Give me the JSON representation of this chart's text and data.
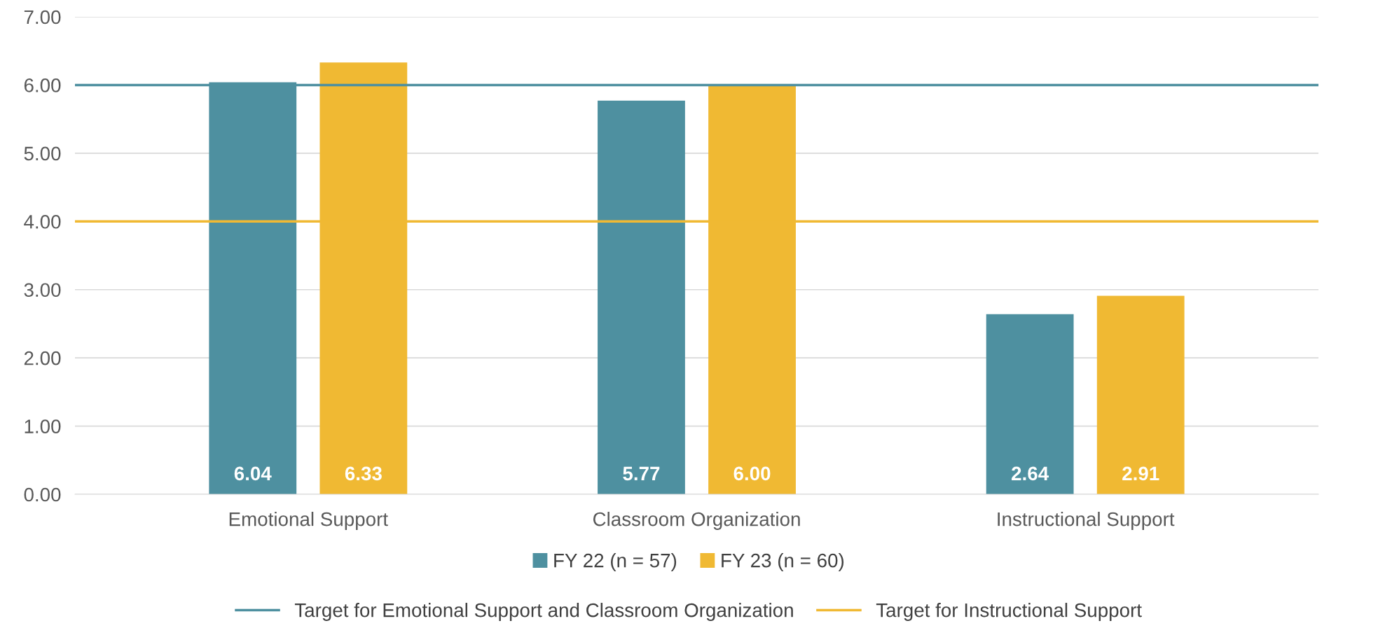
{
  "chart_data": {
    "type": "bar",
    "categories": [
      "Emotional Support",
      "Classroom Organization",
      "Instructional Support"
    ],
    "series": [
      {
        "name": "FY 22 (n = 57)",
        "color": "#4e90a0",
        "values": [
          6.04,
          5.77,
          2.64
        ],
        "value_labels": [
          "6.04",
          "5.77",
          "2.64"
        ]
      },
      {
        "name": "FY 23 (n = 60)",
        "color": "#f0b933",
        "values": [
          6.33,
          6.0,
          2.91
        ],
        "value_labels": [
          "6.33",
          "6.00",
          "2.91"
        ]
      }
    ],
    "ylim": [
      0,
      7
    ],
    "yticks": [
      {
        "value": 0,
        "label": "0.00"
      },
      {
        "value": 1,
        "label": "1.00"
      },
      {
        "value": 2,
        "label": "2.00"
      },
      {
        "value": 3,
        "label": "3.00"
      },
      {
        "value": 4,
        "label": "4.00"
      },
      {
        "value": 5,
        "label": "5.00"
      },
      {
        "value": 6,
        "label": "6.00"
      },
      {
        "value": 7,
        "label": "7.00"
      }
    ],
    "ref_lines": [
      {
        "axis": "y",
        "value": 6,
        "label": "Target for Emotional Support and Classroom Organization",
        "color": "#4e90a0",
        "line_style": "solid"
      },
      {
        "axis": "y",
        "value": 4,
        "label": "Target for Instructional Support",
        "color": "#f0b933",
        "line_style": "solid"
      }
    ],
    "grid": "y",
    "legend": "bottom"
  }
}
